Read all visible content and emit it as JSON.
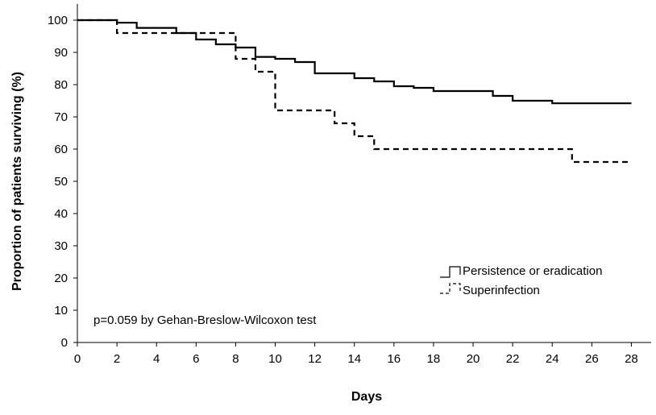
{
  "chart_data": {
    "type": "line",
    "title": "",
    "xlabel": "Days",
    "ylabel": "Proportion of patients surviving (%)",
    "xlim": [
      0,
      29
    ],
    "ylim": [
      0,
      105
    ],
    "xticks": [
      0,
      2,
      4,
      6,
      8,
      10,
      12,
      14,
      16,
      18,
      20,
      22,
      24,
      26,
      28
    ],
    "yticks": [
      0,
      10,
      20,
      30,
      40,
      50,
      60,
      70,
      80,
      90,
      100
    ],
    "grid": false,
    "legend_position": "bottom-right",
    "annotation": "p=0.059 by Gehan-Breslow-Wilcoxon test",
    "series": [
      {
        "name": "Persistence or eradication",
        "line_style": "solid",
        "step": true,
        "x": [
          0,
          2,
          3,
          5,
          6,
          7,
          8,
          9,
          10,
          11,
          12,
          14,
          15,
          16,
          17,
          18,
          21,
          22,
          24,
          28
        ],
        "y": [
          100,
          99.2,
          97.6,
          96,
          94,
          92.5,
          91.5,
          88.6,
          88,
          87,
          83.5,
          82,
          81,
          79.5,
          79,
          78,
          76.5,
          75,
          74.2,
          74.2
        ]
      },
      {
        "name": "Superinfection",
        "line_style": "dashed",
        "step": true,
        "x": [
          0,
          2,
          8,
          9,
          10,
          13,
          14,
          15,
          25,
          28
        ],
        "y": [
          100,
          96,
          88,
          84,
          72,
          68,
          64,
          60,
          56,
          56
        ]
      }
    ]
  }
}
